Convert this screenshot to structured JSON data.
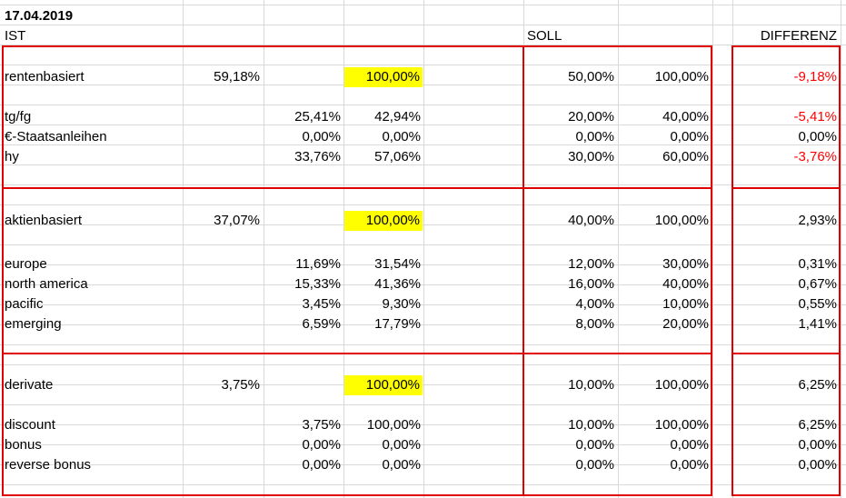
{
  "date": "17.04.2019",
  "headers": {
    "ist": "IST",
    "soll": "SOLL",
    "differenz": "DIFFERENZ"
  },
  "colors": {
    "highlight": "#ffff00",
    "negative": "#ff0000",
    "border": "#e00000"
  },
  "rows": [
    {
      "label": "rentenbasiert",
      "ist_total": "59,18%",
      "ist_part": "",
      "ist_rel": "100,00%",
      "soll_total": "50,00%",
      "soll_rel": "100,00%",
      "diff": "-9,18%",
      "neg": true,
      "highlight": true
    },
    {
      "label": "tg/fg",
      "ist_total": "",
      "ist_part": "25,41%",
      "ist_rel": "42,94%",
      "soll_total": "20,00%",
      "soll_rel": "40,00%",
      "diff": "-5,41%",
      "neg": true
    },
    {
      "label": "€-Staatsanleihen",
      "ist_total": "",
      "ist_part": "0,00%",
      "ist_rel": "0,00%",
      "soll_total": "0,00%",
      "soll_rel": "0,00%",
      "diff": "0,00%"
    },
    {
      "label": "hy",
      "ist_total": "",
      "ist_part": "33,76%",
      "ist_rel": "57,06%",
      "soll_total": "30,00%",
      "soll_rel": "60,00%",
      "diff": "-3,76%",
      "neg": true
    },
    {
      "label": "aktienbasiert",
      "ist_total": "37,07%",
      "ist_part": "",
      "ist_rel": "100,00%",
      "soll_total": "40,00%",
      "soll_rel": "100,00%",
      "diff": "2,93%",
      "highlight": true
    },
    {
      "label": "europe",
      "ist_total": "",
      "ist_part": "11,69%",
      "ist_rel": "31,54%",
      "soll_total": "12,00%",
      "soll_rel": "30,00%",
      "diff": "0,31%"
    },
    {
      "label": "north america",
      "ist_total": "",
      "ist_part": "15,33%",
      "ist_rel": "41,36%",
      "soll_total": "16,00%",
      "soll_rel": "40,00%",
      "diff": "0,67%"
    },
    {
      "label": "pacific",
      "ist_total": "",
      "ist_part": "3,45%",
      "ist_rel": "9,30%",
      "soll_total": "4,00%",
      "soll_rel": "10,00%",
      "diff": "0,55%"
    },
    {
      "label": "emerging",
      "ist_total": "",
      "ist_part": "6,59%",
      "ist_rel": "17,79%",
      "soll_total": "8,00%",
      "soll_rel": "20,00%",
      "diff": "1,41%"
    },
    {
      "label": "derivate",
      "ist_total": "3,75%",
      "ist_part": "",
      "ist_rel": "100,00%",
      "soll_total": "10,00%",
      "soll_rel": "100,00%",
      "diff": "6,25%",
      "highlight": true
    },
    {
      "label": "discount",
      "ist_total": "",
      "ist_part": "3,75%",
      "ist_rel": "100,00%",
      "soll_total": "10,00%",
      "soll_rel": "100,00%",
      "diff": "6,25%"
    },
    {
      "label": "bonus",
      "ist_total": "",
      "ist_part": "0,00%",
      "ist_rel": "0,00%",
      "soll_total": "0,00%",
      "soll_rel": "0,00%",
      "diff": "0,00%"
    },
    {
      "label": "reverse bonus",
      "ist_total": "",
      "ist_part": "0,00%",
      "ist_rel": "0,00%",
      "soll_total": "0,00%",
      "soll_rel": "0,00%",
      "diff": "0,00%"
    }
  ]
}
